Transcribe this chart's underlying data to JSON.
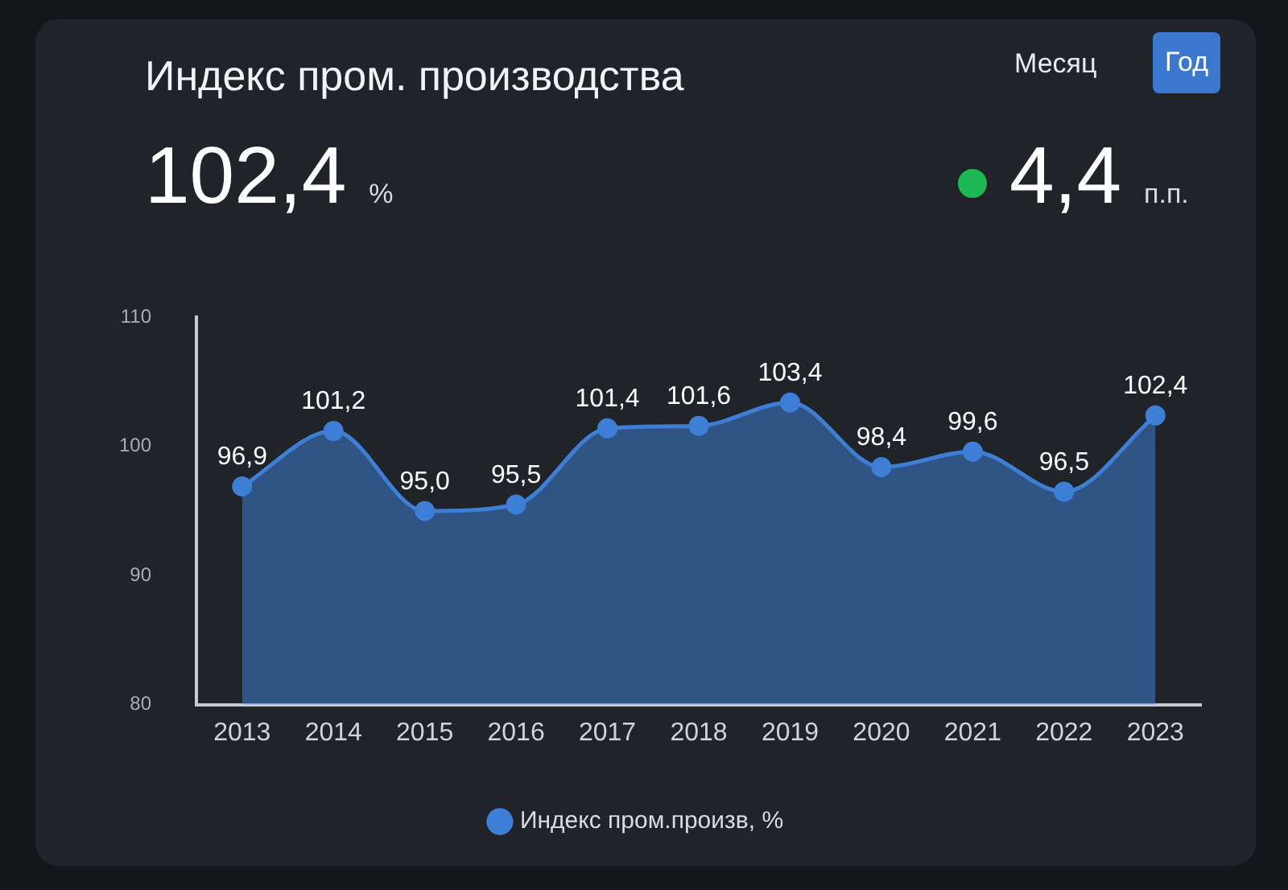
{
  "chart_data": {
    "type": "area",
    "title": "Индекс пром. производства",
    "annotations": [
      "102,4",
      "%",
      "4,4",
      "п.п.",
      "Месяц",
      "Год"
    ],
    "categories": [
      "2013",
      "2014",
      "2015",
      "2016",
      "2017",
      "2018",
      "2019",
      "2020",
      "2021",
      "2022",
      "2023"
    ],
    "series": [
      {
        "name": "Индекс пром.произв, %",
        "color": "#3d7fd6",
        "values": [
          96.9,
          101.2,
          95.0,
          95.5,
          101.4,
          101.6,
          103.4,
          98.4,
          99.6,
          96.5,
          102.4
        ],
        "value_labels": [
          "96,9",
          "101,2",
          "95,0",
          "95,5",
          "101,4",
          "101,6",
          "103,4",
          "98,4",
          "99,6",
          "96,5",
          "102,4"
        ]
      }
    ],
    "ylim": [
      80,
      110
    ],
    "yticks": [
      80,
      90,
      100,
      110
    ],
    "grid": false,
    "legend": "bottom",
    "marker": "circle"
  }
}
